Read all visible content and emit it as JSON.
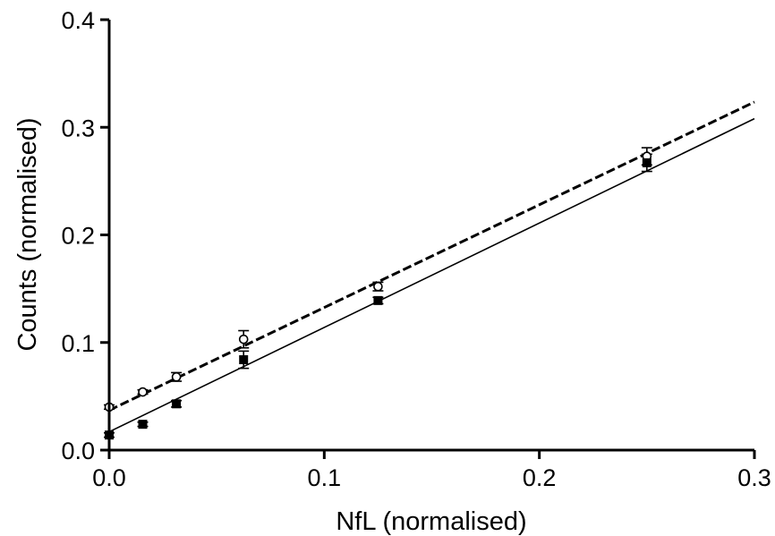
{
  "chart_data": {
    "type": "scatter",
    "title": "",
    "xlabel": "NfL (normalised)",
    "ylabel": "Counts (normalised)",
    "xlim": [
      0,
      0.3
    ],
    "ylim": [
      0,
      0.4
    ],
    "x_ticks": [
      0.0,
      0.1,
      0.2,
      0.3
    ],
    "x_tick_labels": [
      "0.0",
      "0.1",
      "0.2",
      "0.3"
    ],
    "y_ticks": [
      0.0,
      0.1,
      0.2,
      0.3,
      0.4
    ],
    "y_tick_labels": [
      "0.0",
      "0.1",
      "0.2",
      "0.3",
      "0.4"
    ],
    "grid": false,
    "legend": "none",
    "series": [
      {
        "marker": "open-circle",
        "color": "#000000",
        "x": [
          0.0,
          0.0156,
          0.03125,
          0.0625,
          0.125,
          0.25
        ],
        "y": [
          0.04,
          0.054,
          0.068,
          0.103,
          0.152,
          0.273
        ],
        "err": [
          0.002,
          0.002,
          0.004,
          0.008,
          0.004,
          0.008
        ],
        "fit": {
          "slope": 0.955,
          "intercept": 0.037,
          "style": "dashed"
        }
      },
      {
        "marker": "filled-square",
        "color": "#000000",
        "x": [
          0.0,
          0.0156,
          0.03125,
          0.0625,
          0.125,
          0.25
        ],
        "y": [
          0.014,
          0.024,
          0.043,
          0.084,
          0.139,
          0.267
        ],
        "err": [
          0.002,
          0.002,
          0.003,
          0.008,
          0.003,
          0.008
        ],
        "fit": {
          "slope": 0.97,
          "intercept": 0.017,
          "style": "solid"
        }
      }
    ]
  }
}
